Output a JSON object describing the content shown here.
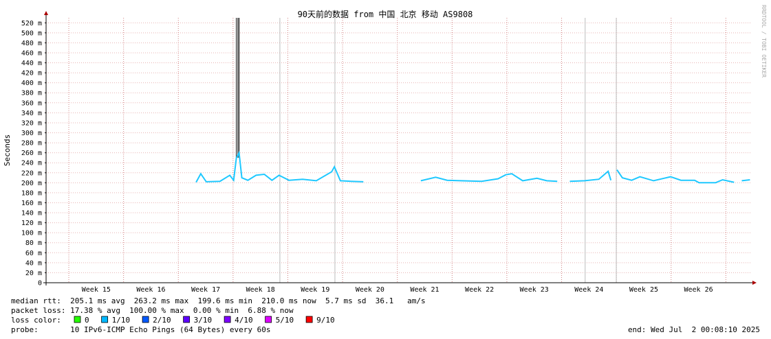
{
  "chart_data": {
    "type": "line",
    "title": "90天前的数据 from 中国 北京 移动 AS9808",
    "y_label": "Seconds",
    "watermark": "RRDTOOL / TOBI OETIKER",
    "xlim": [
      14.585,
      27.46
    ],
    "ylim": [
      0,
      0.53
    ],
    "xticks": [
      {
        "value": 15.5,
        "label": "Week 15"
      },
      {
        "value": 16.5,
        "label": "Week 16"
      },
      {
        "value": 17.5,
        "label": "Week 17"
      },
      {
        "value": 18.5,
        "label": "Week 18"
      },
      {
        "value": 19.5,
        "label": "Week 19"
      },
      {
        "value": 20.5,
        "label": "Week 20"
      },
      {
        "value": 21.5,
        "label": "Week 21"
      },
      {
        "value": 22.5,
        "label": "Week 22"
      },
      {
        "value": 23.5,
        "label": "Week 23"
      },
      {
        "value": 24.5,
        "label": "Week 24"
      },
      {
        "value": 25.5,
        "label": "Week 25"
      },
      {
        "value": 26.5,
        "label": "Week 26"
      }
    ],
    "xgrid": [
      15,
      16,
      17,
      18,
      19,
      20,
      21,
      22,
      23,
      24,
      25,
      26,
      27
    ],
    "yticks": [
      0,
      {
        "value": 0.02,
        "label": "20 m"
      },
      {
        "value": 0.04,
        "label": "40 m"
      },
      {
        "value": 0.06,
        "label": "60 m"
      },
      {
        "value": 0.08,
        "label": "80 m"
      },
      {
        "value": 0.1,
        "label": "100 m"
      },
      {
        "value": 0.12,
        "label": "120 m"
      },
      {
        "value": 0.14,
        "label": "140 m"
      },
      {
        "value": 0.16,
        "label": "160 m"
      },
      {
        "value": 0.18,
        "label": "180 m"
      },
      {
        "value": 0.2,
        "label": "200 m"
      },
      {
        "value": 0.22,
        "label": "220 m"
      },
      {
        "value": 0.24,
        "label": "240 m"
      },
      {
        "value": 0.26,
        "label": "260 m"
      },
      {
        "value": 0.28,
        "label": "280 m"
      },
      {
        "value": 0.3,
        "label": "300 m"
      },
      {
        "value": 0.32,
        "label": "320 m"
      },
      {
        "value": 0.34,
        "label": "340 m"
      },
      {
        "value": 0.36,
        "label": "360 m"
      },
      {
        "value": 0.38,
        "label": "380 m"
      },
      {
        "value": 0.4,
        "label": "400 m"
      },
      {
        "value": 0.42,
        "label": "420 m"
      },
      {
        "value": 0.44,
        "label": "440 m"
      },
      {
        "value": 0.46,
        "label": "460 m"
      },
      {
        "value": 0.48,
        "label": "480 m"
      },
      {
        "value": 0.5,
        "label": "500 m"
      },
      {
        "value": 0.52,
        "label": "520 m"
      }
    ],
    "grid": true,
    "series": [
      {
        "color": "#1ec8ff",
        "x": [
          17.324,
          17.41,
          17.51,
          17.76,
          17.94,
          18.01,
          18.06,
          18.11,
          18.16,
          18.27,
          18.42,
          18.57,
          18.71,
          18.84,
          19.02,
          19.27,
          19.52,
          19.8,
          19.85,
          19.96,
          20.15,
          20.38,
          null,
          21.43,
          21.7,
          21.91,
          22.16,
          22.54,
          22.84,
          22.98,
          23.09,
          23.29,
          23.55,
          23.73,
          23.92,
          null,
          24.15,
          24.42,
          24.68,
          24.85,
          24.9,
          null,
          25.01,
          25.11,
          25.28,
          25.43,
          25.68,
          25.87,
          25.99,
          26.18,
          26.43,
          26.51,
          26.81,
          26.94,
          27.15,
          null,
          27.29,
          27.44
        ],
        "values": [
          0.201,
          0.218,
          0.202,
          0.203,
          0.215,
          0.205,
          0.25,
          0.26,
          0.21,
          0.205,
          0.215,
          0.217,
          0.205,
          0.215,
          0.205,
          0.207,
          0.204,
          0.222,
          0.232,
          0.204,
          0.203,
          0.202,
          null,
          0.204,
          0.211,
          0.205,
          0.204,
          0.203,
          0.208,
          0.216,
          0.218,
          0.204,
          0.209,
          0.204,
          0.203,
          null,
          0.203,
          0.204,
          0.207,
          0.223,
          0.205,
          null,
          0.226,
          0.21,
          0.205,
          0.212,
          0.204,
          0.209,
          0.212,
          0.205,
          0.205,
          0.2,
          0.2,
          0.206,
          0.201,
          null,
          0.204,
          0.206
        ]
      }
    ],
    "spikes": {
      "color": "#555555",
      "x": [
        18.06,
        18.09,
        18.11
      ],
      "values": [
        0.53,
        0.53,
        0.53
      ]
    },
    "loss_lines": {
      "color": "#bbbbbb",
      "x": [
        18.855,
        19.86,
        24.43,
        24.999
      ]
    }
  },
  "footer": {
    "median_rtt": "median rtt:  205.1 ms avg  263.2 ms max  199.6 ms min  210.0 ms now  5.7 ms sd  36.1   am/s",
    "packet_loss": "packet loss: 17.38 % avg  100.00 % max  0.00 % min  6.88 % now",
    "loss_color_label": "loss color:",
    "loss_colors": [
      {
        "label": "0",
        "color": "#26ff00"
      },
      {
        "label": "1/10",
        "color": "#00b8ff"
      },
      {
        "label": "2/10",
        "color": "#0059ff"
      },
      {
        "label": "3/10",
        "color": "#5e00ff"
      },
      {
        "label": "4/10",
        "color": "#7e00ff"
      },
      {
        "label": "5/10",
        "color": "#dd00ff"
      },
      {
        "label": "9/10",
        "color": "#ff0000"
      }
    ],
    "probe": "probe:       10 IPv6-ICMP Echo Pings (64 Bytes) every 60s",
    "end": "end: Wed Jul  2 00:08:10 2025"
  }
}
